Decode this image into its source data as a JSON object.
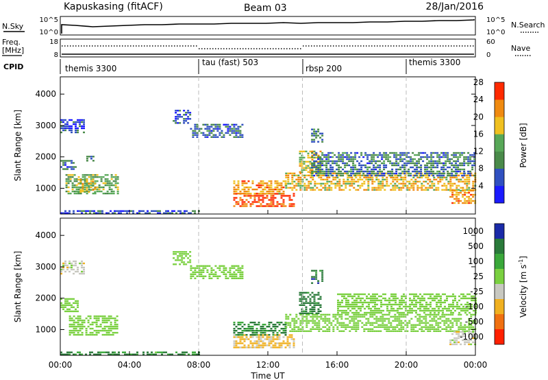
{
  "header": {
    "title": "Kapuskasing (fitACF)",
    "beam": "Beam 03",
    "date": "28/Jan/2016"
  },
  "panels": {
    "nsky_label": "N.Sky",
    "nsky_ticks": [
      "10^5",
      "10^0"
    ],
    "nsearch_label": "N.Search",
    "nsearch_ticks": [
      "10^5",
      "10^0"
    ],
    "freq_label": "Freq.",
    "freq_unit": "[MHz]",
    "freq_ticks": [
      "18",
      "8"
    ],
    "nave_label": "Nave",
    "nave_ticks": [
      "60",
      "0"
    ],
    "cpid_label": "CPID",
    "cpid_segments": [
      {
        "label": "themis 3300",
        "start": 0,
        "end": 8
      },
      {
        "label": "tau (fast) 503",
        "start": 8,
        "end": 14
      },
      {
        "label": "rbsp 200",
        "start": 14,
        "end": 20
      },
      {
        "label": "themis 3300",
        "start": 20,
        "end": 24
      }
    ]
  },
  "chart_data": [
    {
      "type": "heatmap",
      "title": "",
      "ylabel": "Slant Range [km]",
      "xlabel": "Time UT",
      "x_range_hours": [
        0,
        24
      ],
      "xticks": [
        "00:00",
        "04:00",
        "08:00",
        "12:00",
        "16:00",
        "20:00",
        "00:00"
      ],
      "ylim": [
        180,
        4550
      ],
      "yticks": [
        "1000",
        "2000",
        "3000",
        "4000"
      ],
      "colorbar": {
        "label": "Power [dB]",
        "ticks": [
          "4",
          "8",
          "12",
          "16",
          "20",
          "24",
          "28"
        ],
        "range": [
          0,
          30
        ],
        "colors": [
          "#1a1aff",
          "#3050c0",
          "#4a8a4a",
          "#58a858",
          "#f0c020",
          "#f08a10",
          "#ff2a00"
        ]
      },
      "echo_regions": [
        {
          "t0": 0.0,
          "t1": 8.0,
          "r0": 180,
          "r1": 300,
          "value": 6
        },
        {
          "t0": 0.0,
          "t1": 0.9,
          "r0": 1600,
          "r1": 1900,
          "value": 9
        },
        {
          "t0": 0.0,
          "t1": 1.4,
          "r0": 2800,
          "r1": 3200,
          "value": 5
        },
        {
          "t0": 0.3,
          "t1": 3.3,
          "r0": 850,
          "r1": 1450,
          "value": 14
        },
        {
          "t0": 1.0,
          "t1": 2.0,
          "r0": 900,
          "r1": 1300,
          "value": 20
        },
        {
          "t0": 1.5,
          "t1": 1.9,
          "r0": 1850,
          "r1": 2100,
          "value": 10
        },
        {
          "t0": 6.5,
          "t1": 7.5,
          "r0": 3100,
          "r1": 3500,
          "value": 6
        },
        {
          "t0": 7.5,
          "t1": 10.5,
          "r0": 2600,
          "r1": 3050,
          "value": 8
        },
        {
          "t0": 10.0,
          "t1": 13.5,
          "r0": 450,
          "r1": 850,
          "value": 28
        },
        {
          "t0": 10.0,
          "t1": 13.0,
          "r0": 850,
          "r1": 1250,
          "value": 22
        },
        {
          "t0": 13.0,
          "t1": 24.0,
          "r0": 950,
          "r1": 1500,
          "value": 20
        },
        {
          "t0": 13.8,
          "t1": 15.0,
          "r0": 1500,
          "r1": 2200,
          "value": 18
        },
        {
          "t0": 14.5,
          "t1": 24.0,
          "r0": 1400,
          "r1": 2150,
          "value": 9
        },
        {
          "t0": 14.5,
          "t1": 15.2,
          "r0": 2500,
          "r1": 2900,
          "value": 10
        },
        {
          "t0": 22.5,
          "t1": 24.0,
          "r0": 550,
          "r1": 950,
          "value": 22
        }
      ]
    },
    {
      "type": "heatmap",
      "title": "",
      "ylabel": "Slant Range [km]",
      "xlabel": "Time UT",
      "x_range_hours": [
        0,
        24
      ],
      "xticks": [
        "00:00",
        "04:00",
        "08:00",
        "12:00",
        "16:00",
        "20:00",
        "00:00"
      ],
      "ylim": [
        180,
        4550
      ],
      "yticks": [
        "1000",
        "2000",
        "3000",
        "4000"
      ],
      "colorbar": {
        "label": "Velocity [m s",
        "label_superscript": "-1",
        "label_close": "]",
        "ticks": [
          "1000",
          "500",
          "100",
          "25",
          "-25",
          "-100",
          "-500",
          "-1000"
        ],
        "colors": [
          "#1a2aa8",
          "#2a7a3a",
          "#3aa83a",
          "#7ad040",
          "#c8c8c0",
          "#f0b020",
          "#f07010",
          "#ff2000"
        ]
      },
      "echo_regions": [
        {
          "t0": 0.0,
          "t1": 8.0,
          "r0": 180,
          "r1": 300,
          "value": 100
        },
        {
          "t0": 0.0,
          "t1": 1.0,
          "r0": 1600,
          "r1": 2000,
          "value": 0
        },
        {
          "t0": 0.0,
          "t1": 1.4,
          "r0": 2800,
          "r1": 3200,
          "value": -60
        },
        {
          "t0": 0.5,
          "t1": 3.3,
          "r0": 850,
          "r1": 1450,
          "value": 0
        },
        {
          "t0": 6.5,
          "t1": 7.5,
          "r0": 3100,
          "r1": 3500,
          "value": 0
        },
        {
          "t0": 7.5,
          "t1": 10.5,
          "r0": 2600,
          "r1": 3050,
          "value": 0
        },
        {
          "t0": 10.0,
          "t1": 13.5,
          "r0": 450,
          "r1": 850,
          "value": -150
        },
        {
          "t0": 10.0,
          "t1": 13.0,
          "r0": 850,
          "r1": 1250,
          "value": 150
        },
        {
          "t0": 13.0,
          "t1": 24.0,
          "r0": 950,
          "r1": 1500,
          "value": 0
        },
        {
          "t0": 13.8,
          "t1": 15.0,
          "r0": 1500,
          "r1": 2200,
          "value": 250
        },
        {
          "t0": 16.0,
          "t1": 24.0,
          "r0": 1500,
          "r1": 2150,
          "value": 0
        },
        {
          "t0": 14.5,
          "t1": 15.2,
          "r0": 2500,
          "r1": 2900,
          "value": 300
        },
        {
          "t0": 22.5,
          "t1": 24.0,
          "r0": 550,
          "r1": 950,
          "value": -60
        }
      ]
    }
  ]
}
